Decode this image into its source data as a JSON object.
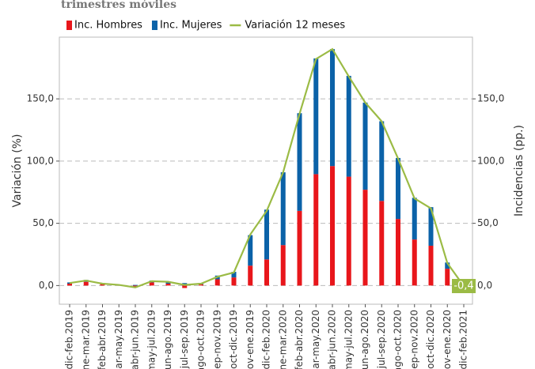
{
  "chart_data": {
    "type": "bar_line",
    "title": "trimestres móviles",
    "y_label": "Variación (%)",
    "y2_label": "Incidencias (pp.)",
    "categories": [
      "dic-feb.2019",
      "ene-mar.2019",
      "feb-abr.2019",
      "mar-may.2019",
      "abr-jun.2019",
      "may-jul.2019",
      "jun-ago.2019",
      "jul-sep.2019",
      "ago-oct.2019",
      "sep-nov.2019",
      "oct-dic.2019",
      "nov-ene.2019",
      "dic-feb.2020",
      "ene-mar.2020",
      "feb-abr.2020",
      "mar-may.2020",
      "abr-jun.2020",
      "may-jul.2020",
      "jun-ago.2020",
      "jul-sep.2020",
      "ago-oct.2020",
      "sep-nov.2020",
      "oct-dic.2020",
      "nov-ene.2020",
      "dic-feb.2021"
    ],
    "series": [
      {
        "name": "Inc. Hombres",
        "color": "#e8161b",
        "kind": "bar",
        "axis": "y2",
        "values": [
          1.5,
          3,
          1.5,
          0.6,
          -1.5,
          2.5,
          1.5,
          -2,
          1,
          5,
          6.5,
          16,
          21,
          32.5,
          60,
          89.5,
          96,
          87.5,
          77,
          68,
          53.5,
          37,
          32,
          13.5,
          2.5
        ]
      },
      {
        "name": "Inc. Mujeres",
        "color": "#0b62a8",
        "kind": "bar",
        "axis": "y2",
        "values": [
          1,
          1.5,
          0.5,
          0.2,
          0.5,
          1.5,
          1.5,
          2,
          1,
          3,
          4.5,
          24.5,
          40,
          58.5,
          78.5,
          93,
          94,
          81,
          70,
          64,
          49,
          33.5,
          31,
          5,
          -2.9
        ]
      },
      {
        "name": "Variación 12 meses",
        "color": "#9bbb45",
        "kind": "line",
        "values": [
          2,
          4,
          1.5,
          0.5,
          -1.5,
          3.5,
          3,
          0.5,
          1.5,
          7,
          10.5,
          41,
          60,
          91,
          138,
          182,
          190,
          168,
          147,
          132,
          102,
          70,
          62,
          18,
          -0.4
        ],
        "value_labels": [
          null,
          null,
          null,
          null,
          null,
          null,
          null,
          null,
          null,
          null,
          null,
          null,
          null,
          null,
          null,
          null,
          null,
          null,
          null,
          null,
          null,
          null,
          null,
          null,
          "-0,4"
        ]
      }
    ],
    "ylim": [
      -15,
      199.6
    ],
    "yticks": [
      {
        "value": 0,
        "label": "0,0"
      },
      {
        "value": 50,
        "label": "50,0"
      },
      {
        "value": 100,
        "label": "100,0"
      },
      {
        "value": 150,
        "label": "150,0"
      }
    ],
    "y2lim": [
      -15,
      199.6
    ],
    "y2ticks": [
      {
        "value": 0,
        "label": "0,0"
      },
      {
        "value": 50,
        "label": "50,0"
      },
      {
        "value": 100,
        "label": "100,0"
      },
      {
        "value": 150,
        "label": "150,0"
      }
    ],
    "grid": true
  }
}
